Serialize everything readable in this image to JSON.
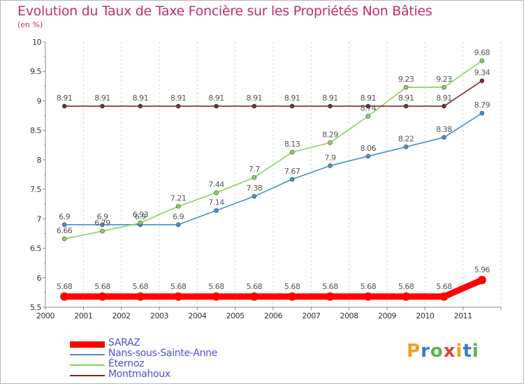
{
  "title": "Evolution du Taux de Taxe Foncière sur les Propriétés Non Bâties",
  "subtitle": "(en %)",
  "logo": {
    "letters": [
      "P",
      "r",
      "o",
      "x",
      "i",
      "t",
      "i"
    ],
    "colors": [
      "#f0a020",
      "#3a7cc8",
      "#5ab54a",
      "#e04040",
      "#f0a020",
      "#3a7cc8",
      "#5ab54a"
    ]
  },
  "chart_data": {
    "type": "line",
    "x": [
      "2000",
      "2001",
      "2002",
      "2003",
      "2004",
      "2005",
      "2006",
      "2007",
      "2008",
      "2009",
      "2010",
      "2011"
    ],
    "ylim": [
      5.5,
      10
    ],
    "yticks": [
      "5.5",
      "6",
      "6.5",
      "7",
      "7.5",
      "8",
      "8.5",
      "9",
      "9.5",
      "10"
    ],
    "grid": "vertical",
    "legend": "bottom-left",
    "series": [
      {
        "name": "SARAZ",
        "color": "#ff0000",
        "labels": [
          "5.68",
          "5.68",
          "5.68",
          "5.68",
          "5.68",
          "5.68",
          "5.68",
          "5.68",
          "5.68",
          "5.68",
          "5.68",
          "5.96"
        ],
        "values": [
          5.68,
          5.68,
          5.68,
          5.68,
          5.68,
          5.68,
          5.68,
          5.68,
          5.68,
          5.68,
          5.68,
          5.96
        ]
      },
      {
        "name": "Nans-sous-Sainte-Anne",
        "color": "#4a8fcc",
        "labels": [
          "6.9",
          "6.9",
          "6.9",
          "6.9",
          "7.14",
          "7.38",
          "7.67",
          "7.9",
          "8.06",
          "8.22",
          "8.38",
          "8.79"
        ],
        "values": [
          6.9,
          6.9,
          6.9,
          6.9,
          7.14,
          7.38,
          7.67,
          7.9,
          8.06,
          8.22,
          8.38,
          8.79
        ]
      },
      {
        "name": "Éternoz",
        "color": "#88d060",
        "labels": [
          "6.66",
          "6.79",
          "6.93",
          "7.21",
          "7.44",
          "7.7",
          "8.13",
          "8.29",
          "8.74",
          "9.23",
          "9.23",
          "9.68"
        ],
        "values": [
          6.66,
          6.79,
          6.93,
          7.21,
          7.44,
          7.7,
          8.13,
          8.29,
          8.74,
          9.23,
          9.23,
          9.68
        ]
      },
      {
        "name": "Montmahoux",
        "color": "#7a2a2a",
        "labels": [
          "8.91",
          "8.91",
          "8.91",
          "8.91",
          "8.91",
          "8.91",
          "8.91",
          "8.91",
          "8.91",
          "8.91",
          "8.91",
          "9.34"
        ],
        "values": [
          8.91,
          8.91,
          8.91,
          8.91,
          8.91,
          8.91,
          8.91,
          8.91,
          8.91,
          8.91,
          8.91,
          9.34
        ]
      }
    ]
  }
}
